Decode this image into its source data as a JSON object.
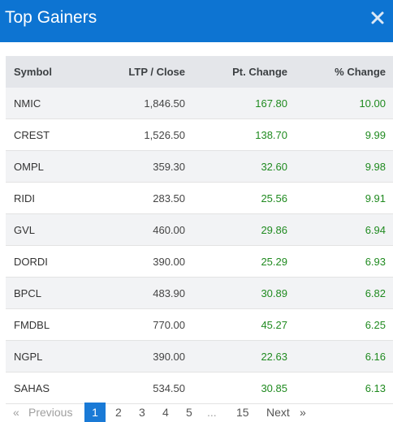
{
  "header": {
    "title": "Top Gainers",
    "close_icon": "close-icon"
  },
  "table": {
    "columns": [
      "Symbol",
      "LTP / Close",
      "Pt. Change",
      "% Change"
    ],
    "rows": [
      {
        "symbol": "NMIC",
        "ltp": "1,846.50",
        "pt": "167.80",
        "pct": "10.00"
      },
      {
        "symbol": "CREST",
        "ltp": "1,526.50",
        "pt": "138.70",
        "pct": "9.99"
      },
      {
        "symbol": "OMPL",
        "ltp": "359.30",
        "pt": "32.60",
        "pct": "9.98"
      },
      {
        "symbol": "RIDI",
        "ltp": "283.50",
        "pt": "25.56",
        "pct": "9.91"
      },
      {
        "symbol": "GVL",
        "ltp": "460.00",
        "pt": "29.86",
        "pct": "6.94"
      },
      {
        "symbol": "DORDI",
        "ltp": "390.00",
        "pt": "25.29",
        "pct": "6.93"
      },
      {
        "symbol": "BPCL",
        "ltp": "483.90",
        "pt": "30.89",
        "pct": "6.82"
      },
      {
        "symbol": "FMDBL",
        "ltp": "770.00",
        "pt": "45.27",
        "pct": "6.25"
      },
      {
        "symbol": "NGPL",
        "ltp": "390.00",
        "pt": "22.63",
        "pct": "6.16"
      },
      {
        "symbol": "SAHAS",
        "ltp": "534.50",
        "pt": "30.85",
        "pct": "6.13"
      }
    ],
    "change_color": "#1f8a1f"
  },
  "pagination": {
    "prev_arrow": "«",
    "prev_label": "Previous",
    "pages": [
      "1",
      "2",
      "3",
      "4",
      "5"
    ],
    "ellipsis": "...",
    "last_page": "15",
    "next_label": "Next",
    "next_arrow": "»",
    "active_page": "1"
  },
  "colors": {
    "header_bg": "#0d74d2",
    "active_page_bg": "#1a7ad6"
  }
}
